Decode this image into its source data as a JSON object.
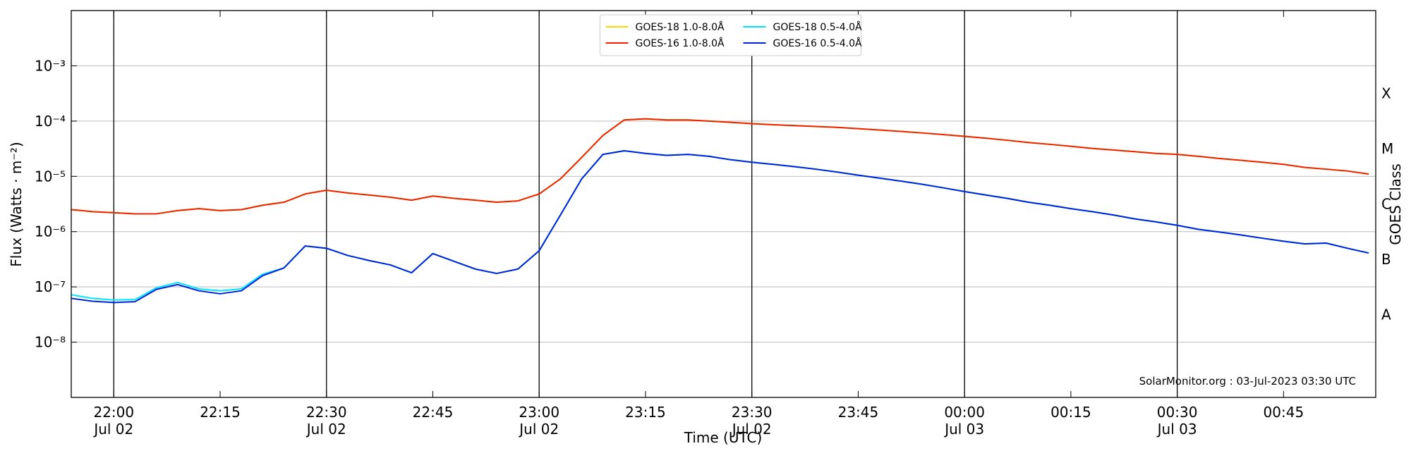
{
  "chart_data": {
    "type": "line",
    "xlabel": "Time (UTC)",
    "ylabel": "Flux (Watts · m⁻²)",
    "y2label": "GOES Class",
    "annotation": "SolarMonitor.org : 03-Jul-2023 03:30 UTC",
    "log_y": true,
    "grid": true,
    "legend": "upper center",
    "xlim": [
      "Jul 02 21:54",
      "Jul 03 00:58"
    ],
    "ylim": [
      1e-09,
      0.01
    ],
    "y2lim": [
      1e-09,
      0.01
    ],
    "xticks": [
      {
        "value": "Jul 02 22:00",
        "label": "22:00\nJul 02"
      },
      {
        "value": "Jul 02 22:15",
        "label": "22:15"
      },
      {
        "value": "Jul 02 22:30",
        "label": "22:30\nJul 02"
      },
      {
        "value": "Jul 02 22:45",
        "label": "22:45"
      },
      {
        "value": "Jul 02 23:00",
        "label": "23:00\nJul 02"
      },
      {
        "value": "Jul 02 23:15",
        "label": "23:15"
      },
      {
        "value": "Jul 02 23:30",
        "label": "23:30\nJul 02"
      },
      {
        "value": "Jul 02 23:45",
        "label": "23:45"
      },
      {
        "value": "Jul 03 00:00",
        "label": "00:00\nJul 03"
      },
      {
        "value": "Jul 03 00:15",
        "label": "00:15"
      },
      {
        "value": "Jul 03 00:30",
        "label": "00:30\nJul 03"
      },
      {
        "value": "Jul 03 00:45",
        "label": "00:45"
      }
    ],
    "yticks": [
      {
        "value": 1e-08,
        "label": "10⁻⁸"
      },
      {
        "value": 1e-07,
        "label": "10⁻⁷"
      },
      {
        "value": 1e-06,
        "label": "10⁻⁶"
      },
      {
        "value": 1e-05,
        "label": "10⁻⁵"
      },
      {
        "value": 0.0001,
        "label": "10⁻⁴"
      },
      {
        "value": 0.001,
        "label": "10⁻³"
      }
    ],
    "y2ticks": [
      {
        "value": 3.16e-08,
        "label": "A"
      },
      {
        "value": 3.16e-07,
        "label": "B"
      },
      {
        "value": 3.16e-06,
        "label": "C"
      },
      {
        "value": 3.16e-05,
        "label": "M"
      },
      {
        "value": 0.000316,
        "label": "X"
      }
    ],
    "x": [
      "Jul 02 21:54",
      "Jul 02 21:57",
      "Jul 02 22:00",
      "Jul 02 22:03",
      "Jul 02 22:06",
      "Jul 02 22:09",
      "Jul 02 22:12",
      "Jul 02 22:15",
      "Jul 02 22:18",
      "Jul 02 22:21",
      "Jul 02 22:24",
      "Jul 02 22:27",
      "Jul 02 22:30",
      "Jul 02 22:33",
      "Jul 02 22:36",
      "Jul 02 22:39",
      "Jul 02 22:42",
      "Jul 02 22:45",
      "Jul 02 22:48",
      "Jul 02 22:51",
      "Jul 02 22:54",
      "Jul 02 22:57",
      "Jul 02 23:00",
      "Jul 02 23:03",
      "Jul 02 23:06",
      "Jul 02 23:09",
      "Jul 02 23:12",
      "Jul 02 23:15",
      "Jul 02 23:18",
      "Jul 02 23:21",
      "Jul 02 23:24",
      "Jul 02 23:27",
      "Jul 02 23:30",
      "Jul 02 23:33",
      "Jul 02 23:36",
      "Jul 02 23:39",
      "Jul 02 23:42",
      "Jul 02 23:45",
      "Jul 02 23:48",
      "Jul 02 23:51",
      "Jul 02 23:54",
      "Jul 02 23:57",
      "Jul 03 00:00",
      "Jul 03 00:03",
      "Jul 03 00:06",
      "Jul 03 00:09",
      "Jul 03 00:12",
      "Jul 03 00:15",
      "Jul 03 00:18",
      "Jul 03 00:21",
      "Jul 03 00:24",
      "Jul 03 00:27",
      "Jul 03 00:30",
      "Jul 03 00:33",
      "Jul 03 00:36",
      "Jul 03 00:39",
      "Jul 03 00:42",
      "Jul 03 00:45",
      "Jul 03 00:48",
      "Jul 03 00:51",
      "Jul 03 00:54",
      "Jul 03 00:57"
    ],
    "series": [
      {
        "name": "GOES-18 1.0-8.0Å",
        "color": "#ffd700",
        "values": [
          2.5e-06,
          2.3e-06,
          2.2e-06,
          2.1e-06,
          2.1e-06,
          2.4e-06,
          2.6e-06,
          2.4e-06,
          2.5e-06,
          3e-06,
          3.4e-06,
          4.8e-06,
          5.6e-06,
          5e-06,
          4.6e-06,
          4.2e-06,
          3.7e-06,
          4.4e-06,
          4e-06,
          3.7e-06,
          3.4e-06,
          3.6e-06,
          4.8e-06,
          9e-06,
          2.2e-05,
          5.5e-05,
          0.000105,
          0.00011,
          0.000105,
          0.000105,
          0.0001,
          9.5e-05,
          9e-05,
          8.6e-05,
          8.3e-05,
          8e-05,
          7.7e-05,
          7.3e-05,
          6.9e-05,
          6.5e-05,
          6.1e-05,
          5.7e-05,
          5.3e-05,
          4.9e-05,
          4.5e-05,
          4.1e-05,
          3.8e-05,
          3.5e-05,
          3.2e-05,
          3e-05,
          2.8e-05,
          2.6e-05,
          2.5e-05,
          2.3e-05,
          2.1e-05,
          1.95e-05,
          1.8e-05,
          1.65e-05,
          1.45e-05,
          1.35e-05,
          1.25e-05,
          1.1e-05
        ]
      },
      {
        "name": "GOES-16 1.0-8.0Å",
        "color": "#ee2200",
        "values": [
          2.5e-06,
          2.3e-06,
          2.2e-06,
          2.1e-06,
          2.1e-06,
          2.4e-06,
          2.6e-06,
          2.4e-06,
          2.5e-06,
          3e-06,
          3.4e-06,
          4.8e-06,
          5.6e-06,
          5e-06,
          4.6e-06,
          4.2e-06,
          3.7e-06,
          4.4e-06,
          4e-06,
          3.7e-06,
          3.4e-06,
          3.6e-06,
          4.8e-06,
          9e-06,
          2.2e-05,
          5.5e-05,
          0.000105,
          0.00011,
          0.000105,
          0.000105,
          0.0001,
          9.5e-05,
          9e-05,
          8.6e-05,
          8.3e-05,
          8e-05,
          7.7e-05,
          7.3e-05,
          6.9e-05,
          6.5e-05,
          6.1e-05,
          5.7e-05,
          5.3e-05,
          4.9e-05,
          4.5e-05,
          4.1e-05,
          3.8e-05,
          3.5e-05,
          3.2e-05,
          3e-05,
          2.8e-05,
          2.6e-05,
          2.5e-05,
          2.3e-05,
          2.1e-05,
          1.95e-05,
          1.8e-05,
          1.65e-05,
          1.45e-05,
          1.35e-05,
          1.25e-05,
          1.1e-05
        ]
      },
      {
        "name": "GOES-18 0.5-4.0Å",
        "color": "#00e5ff",
        "values": [
          7.2e-08,
          6.2e-08,
          5.8e-08,
          5.9e-08,
          9.6e-08,
          1.2e-07,
          9.2e-08,
          8.5e-08,
          9.2e-08,
          1.7e-07,
          2.2e-07,
          5.5e-07,
          5e-07,
          3.7e-07,
          3e-07,
          2.5e-07,
          1.8e-07,
          4e-07,
          2.9e-07,
          2.1e-07,
          1.75e-07,
          2.1e-07,
          4.5e-07,
          2e-06,
          9e-06,
          2.5e-05,
          2.9e-05,
          2.6e-05,
          2.4e-05,
          2.5e-05,
          2.3e-05,
          2e-05,
          1.8e-05,
          1.65e-05,
          1.5e-05,
          1.35e-05,
          1.2e-05,
          1.05e-05,
          9.3e-06,
          8.2e-06,
          7.2e-06,
          6.2e-06,
          5.3e-06,
          4.6e-06,
          4e-06,
          3.4e-06,
          3e-06,
          2.6e-06,
          2.3e-06,
          2e-06,
          1.7e-06,
          1.5e-06,
          1.3e-06,
          1.1e-06,
          9.8e-07,
          8.7e-07,
          7.6e-07,
          6.7e-07,
          6e-07,
          6.2e-07,
          5e-07,
          4.1e-07
        ]
      },
      {
        "name": "GOES-16 0.5-4.0Å",
        "color": "#0022dd",
        "values": [
          6.2e-08,
          5.5e-08,
          5.2e-08,
          5.4e-08,
          9e-08,
          1.1e-07,
          8.5e-08,
          7.5e-08,
          8.5e-08,
          1.6e-07,
          2.2e-07,
          5.5e-07,
          5e-07,
          3.7e-07,
          3e-07,
          2.5e-07,
          1.8e-07,
          4e-07,
          2.9e-07,
          2.1e-07,
          1.75e-07,
          2.1e-07,
          4.5e-07,
          2e-06,
          9e-06,
          2.5e-05,
          2.9e-05,
          2.6e-05,
          2.4e-05,
          2.5e-05,
          2.3e-05,
          2e-05,
          1.8e-05,
          1.65e-05,
          1.5e-05,
          1.35e-05,
          1.2e-05,
          1.05e-05,
          9.3e-06,
          8.2e-06,
          7.2e-06,
          6.2e-06,
          5.3e-06,
          4.6e-06,
          4e-06,
          3.4e-06,
          3e-06,
          2.6e-06,
          2.3e-06,
          2e-06,
          1.7e-06,
          1.5e-06,
          1.3e-06,
          1.1e-06,
          9.8e-07,
          8.7e-07,
          7.6e-07,
          6.7e-07,
          6e-07,
          6.2e-07,
          5e-07,
          4.1e-07
        ]
      }
    ]
  }
}
